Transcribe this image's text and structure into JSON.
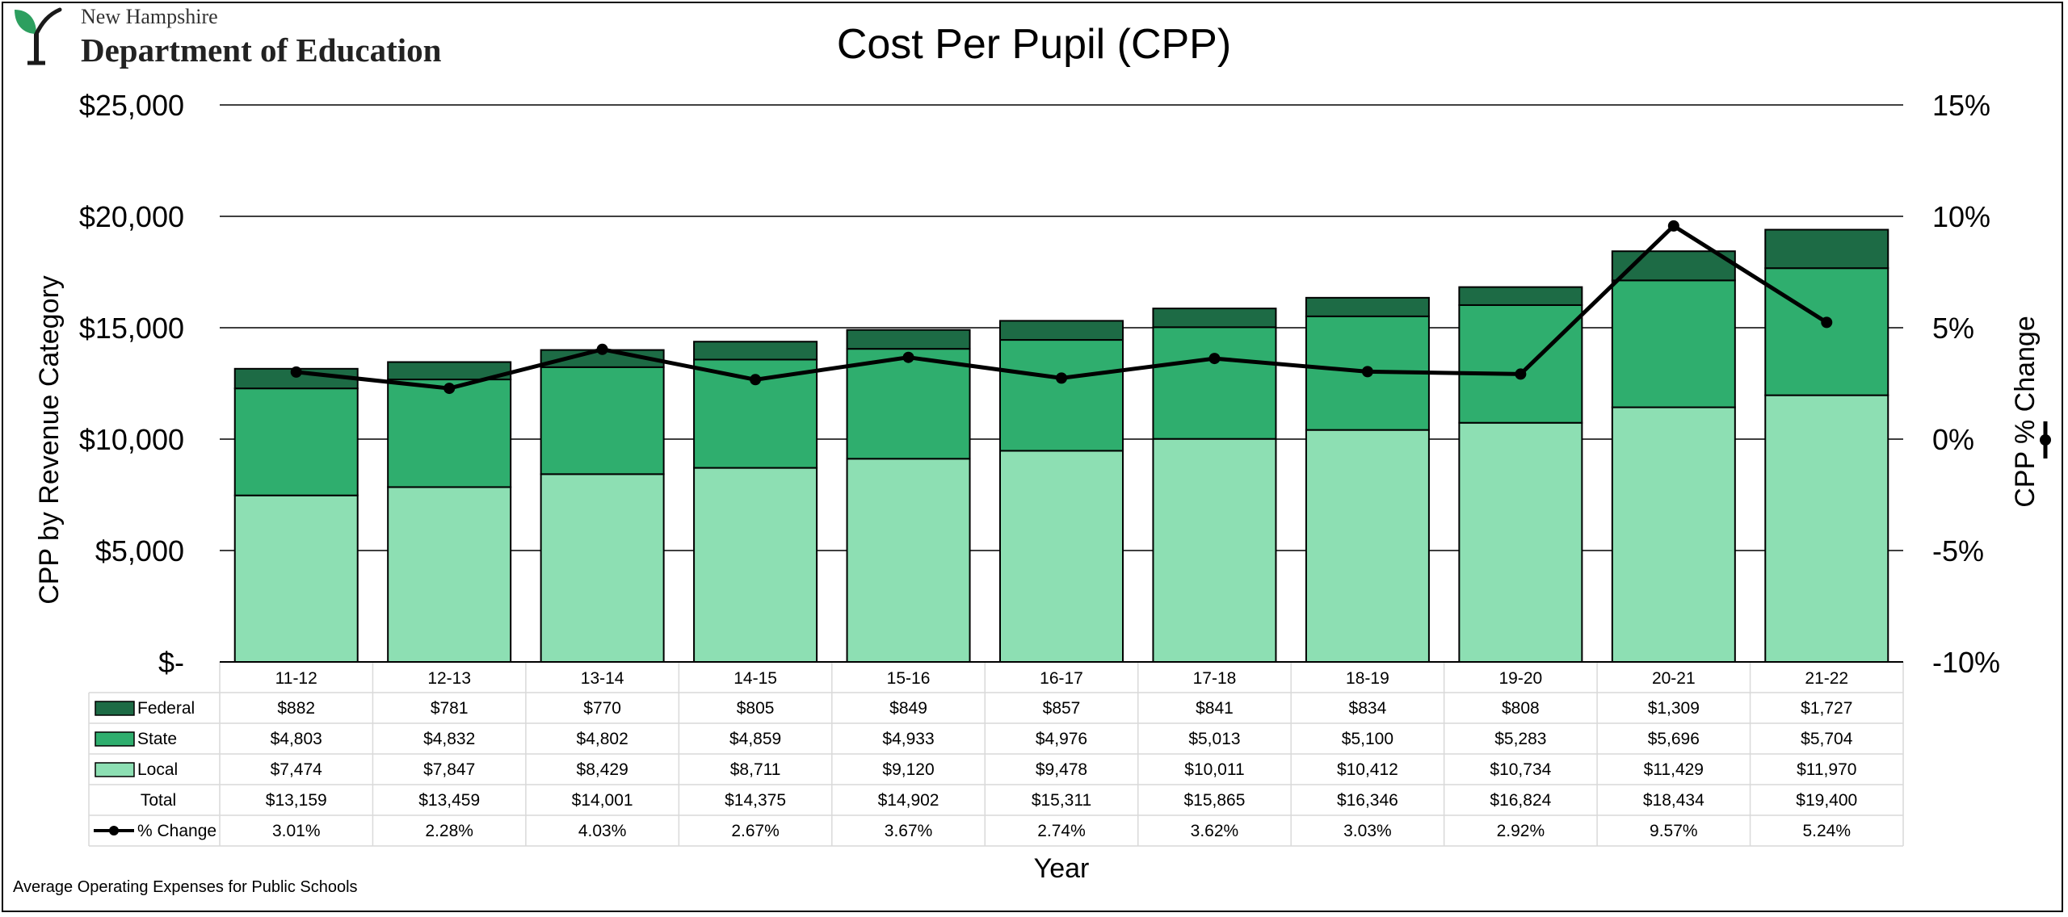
{
  "header": {
    "org_line1": "New Hampshire",
    "org_line2": "Department of Education"
  },
  "footnote": "Average Operating Expenses for Public Schools",
  "colors": {
    "federal": "#1d6b45",
    "state": "#2fae6e",
    "local": "#8ddfb3",
    "line": "#000000",
    "logo": "#2d9f5f"
  },
  "icons": {
    "logo": "sprout-logo-icon"
  },
  "chart_data": {
    "type": "bar",
    "stacked": true,
    "title": "Cost Per Pupil (CPP)",
    "xlabel": "Year",
    "ylabel": "CPP by Revenue Category",
    "y2label": "CPP % Change",
    "ylim": [
      0,
      25000
    ],
    "y2lim": [
      -10,
      15
    ],
    "yticks": [
      "$-",
      "$5,000",
      "$10,000",
      "$15,000",
      "$20,000",
      "$25,000"
    ],
    "y2ticks": [
      "-10%",
      "-5%",
      "0%",
      "5%",
      "10%",
      "15%"
    ],
    "grid": true,
    "categories": [
      "11-12",
      "12-13",
      "13-14",
      "14-15",
      "15-16",
      "16-17",
      "17-18",
      "18-19",
      "19-20",
      "20-21",
      "21-22"
    ],
    "series": [
      {
        "name": "Local",
        "color_key": "local",
        "values": [
          7474,
          7847,
          8429,
          8711,
          9120,
          9478,
          10011,
          10412,
          10734,
          11429,
          11970
        ],
        "labels": [
          "$7,474",
          "$7,847",
          "$8,429",
          "$8,711",
          "$9,120",
          "$9,478",
          "$10,011",
          "$10,412",
          "$10,734",
          "$11,429",
          "$11,970"
        ]
      },
      {
        "name": "State",
        "color_key": "state",
        "values": [
          4803,
          4832,
          4802,
          4859,
          4933,
          4976,
          5013,
          5100,
          5283,
          5696,
          5704
        ],
        "labels": [
          "$4,803",
          "$4,832",
          "$4,802",
          "$4,859",
          "$4,933",
          "$4,976",
          "$5,013",
          "$5,100",
          "$5,283",
          "$5,696",
          "$5,704"
        ]
      },
      {
        "name": "Federal",
        "color_key": "federal",
        "values": [
          882,
          781,
          770,
          805,
          849,
          857,
          841,
          834,
          808,
          1309,
          1727
        ],
        "labels": [
          "$882",
          "$781",
          "$770",
          "$805",
          "$849",
          "$857",
          "$841",
          "$834",
          "$808",
          "$1,309",
          "$1,727"
        ]
      }
    ],
    "total": {
      "name": "Total",
      "values": [
        13159,
        13459,
        14001,
        14375,
        14902,
        15311,
        15865,
        16346,
        16824,
        18434,
        19400
      ],
      "labels": [
        "$13,159",
        "$13,459",
        "$14,001",
        "$14,375",
        "$14,902",
        "$15,311",
        "$15,865",
        "$16,346",
        "$16,824",
        "$18,434",
        "$19,400"
      ]
    },
    "line_series": {
      "name": "% Change",
      "axis": "secondary",
      "values": [
        3.01,
        2.28,
        4.03,
        2.67,
        3.67,
        2.74,
        3.62,
        3.03,
        2.92,
        9.57,
        5.24
      ],
      "labels": [
        "3.01%",
        "2.28%",
        "4.03%",
        "2.67%",
        "3.67%",
        "2.74%",
        "3.62%",
        "3.03%",
        "2.92%",
        "9.57%",
        "5.24%"
      ]
    },
    "data_table": {
      "row_order": [
        "Federal",
        "State",
        "Local",
        "Total",
        "% Change"
      ]
    }
  }
}
